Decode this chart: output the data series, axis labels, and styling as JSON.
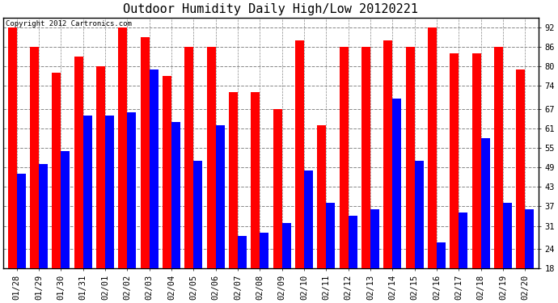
{
  "title": "Outdoor Humidity Daily High/Low 20120221",
  "copyright": "Copyright 2012 Cartronics.com",
  "dates": [
    "01/28",
    "01/29",
    "01/30",
    "01/31",
    "02/01",
    "02/02",
    "02/03",
    "02/04",
    "02/05",
    "02/06",
    "02/07",
    "02/08",
    "02/09",
    "02/10",
    "02/11",
    "02/12",
    "02/13",
    "02/14",
    "02/15",
    "02/16",
    "02/17",
    "02/18",
    "02/19",
    "02/20"
  ],
  "highs": [
    92,
    86,
    78,
    83,
    80,
    92,
    89,
    77,
    86,
    86,
    72,
    72,
    67,
    88,
    62,
    86,
    86,
    88,
    86,
    92,
    84,
    84,
    86,
    79
  ],
  "lows": [
    47,
    50,
    54,
    65,
    65,
    66,
    79,
    63,
    51,
    62,
    28,
    29,
    32,
    48,
    38,
    34,
    36,
    70,
    51,
    26,
    35,
    58,
    38,
    36
  ],
  "bar_width": 0.4,
  "high_color": "#ff0000",
  "low_color": "#0000ff",
  "bg_color": "#ffffff",
  "grid_color": "#888888",
  "yticks": [
    18,
    24,
    31,
    37,
    43,
    49,
    55,
    61,
    67,
    74,
    80,
    86,
    92
  ],
  "ymin": 18,
  "ymax": 95,
  "title_fontsize": 11,
  "tick_fontsize": 7.5,
  "copyright_fontsize": 6.5
}
